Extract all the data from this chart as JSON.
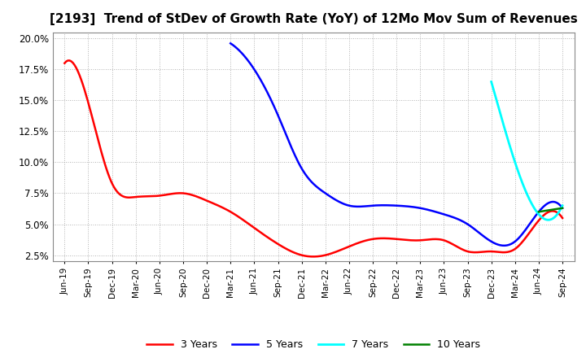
{
  "title": "[2193]  Trend of StDev of Growth Rate (YoY) of 12Mo Mov Sum of Revenues",
  "title_fontsize": 11,
  "ylim": [
    0.02,
    0.205
  ],
  "yticks": [
    0.025,
    0.05,
    0.075,
    0.1,
    0.125,
    0.15,
    0.175,
    0.2
  ],
  "ytick_labels": [
    "2.5%",
    "5.0%",
    "7.5%",
    "10.0%",
    "12.5%",
    "15.0%",
    "17.5%",
    "20.0%"
  ],
  "background_color": "#ffffff",
  "grid_color": "#aaaaaa",
  "line_3y_color": "#ff0000",
  "line_5y_color": "#0000ff",
  "line_7y_color": "#00ffff",
  "line_10y_color": "#008000",
  "legend_labels": [
    "3 Years",
    "5 Years",
    "7 Years",
    "10 Years"
  ],
  "x_labels": [
    "Jun-19",
    "Sep-19",
    "Dec-19",
    "Mar-20",
    "Jun-20",
    "Sep-20",
    "Dec-20",
    "Mar-21",
    "Jun-21",
    "Sep-21",
    "Dec-21",
    "Mar-22",
    "Jun-22",
    "Sep-22",
    "Dec-22",
    "Mar-23",
    "Jun-23",
    "Sep-23",
    "Dec-23",
    "Mar-24",
    "Jun-24",
    "Sep-24"
  ],
  "series_3y": [
    0.18,
    0.148,
    0.083,
    0.072,
    0.073,
    0.075,
    0.069,
    0.06,
    0.047,
    0.034,
    0.025,
    0.025,
    0.032,
    0.038,
    0.038,
    0.037,
    0.037,
    0.028,
    0.028,
    0.03,
    0.053,
    0.055
  ],
  "series_5y": [
    null,
    null,
    null,
    null,
    null,
    null,
    null,
    0.196,
    0.175,
    0.138,
    0.095,
    0.075,
    0.065,
    0.065,
    0.065,
    0.063,
    0.058,
    0.05,
    0.036,
    0.036,
    0.06,
    0.063
  ],
  "series_7y": [
    null,
    null,
    null,
    null,
    null,
    null,
    null,
    null,
    null,
    null,
    null,
    null,
    null,
    null,
    null,
    null,
    null,
    null,
    0.165,
    0.1,
    0.058,
    0.065
  ],
  "series_10y": [
    null,
    null,
    null,
    null,
    null,
    null,
    null,
    null,
    null,
    null,
    null,
    null,
    null,
    null,
    null,
    null,
    null,
    null,
    null,
    null,
    0.06,
    0.063
  ]
}
